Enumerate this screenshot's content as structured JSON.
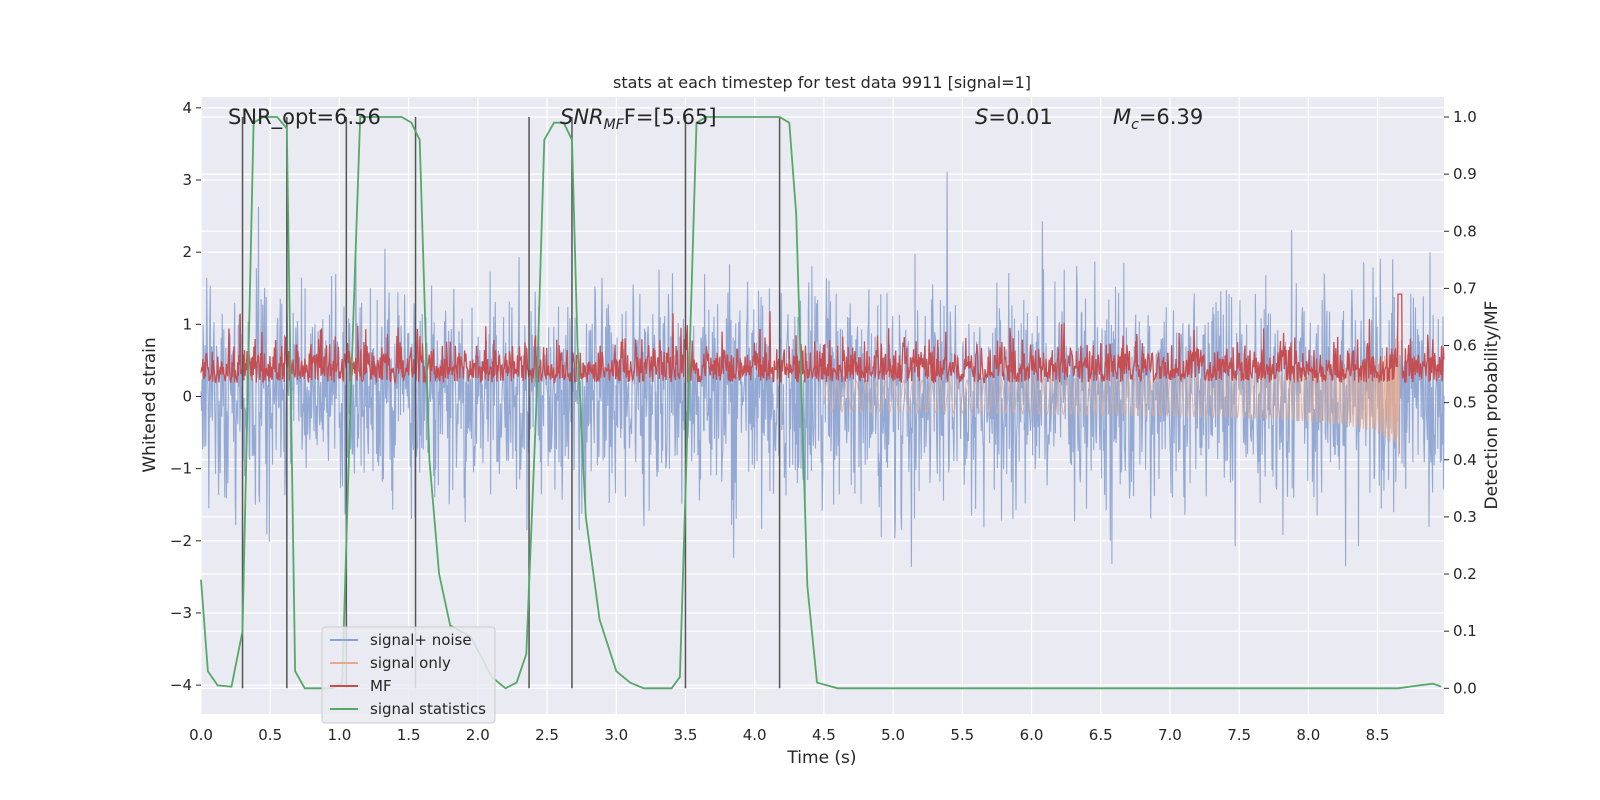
{
  "chart_data": {
    "type": "line",
    "title": "stats at each timestep for test data 9911 [signal=1]",
    "xlabel": "Time (s)",
    "ylabel": "Whitened strain",
    "y2label": "Detection probability/MF",
    "xlim": [
      0.0,
      8.98
    ],
    "ylim": [
      -4.4,
      4.15
    ],
    "y2lim": [
      -0.045,
      1.035
    ],
    "xticks": [
      "0.0",
      "0.5",
      "1.0",
      "1.5",
      "2.0",
      "2.5",
      "3.0",
      "3.5",
      "4.0",
      "4.5",
      "5.0",
      "5.5",
      "6.0",
      "6.5",
      "7.0",
      "7.5",
      "8.0",
      "8.5"
    ],
    "xtick_values": [
      0.0,
      0.5,
      1.0,
      1.5,
      2.0,
      2.5,
      3.0,
      3.5,
      4.0,
      4.5,
      5.0,
      5.5,
      6.0,
      6.5,
      7.0,
      7.5,
      8.0,
      8.5
    ],
    "yticks": [
      "−4",
      "−3",
      "−2",
      "−1",
      "0",
      "1",
      "2",
      "3",
      "4"
    ],
    "ytick_values": [
      -4,
      -3,
      -2,
      -1,
      0,
      1,
      2,
      3,
      4
    ],
    "y2ticks": [
      "0.0",
      "0.1",
      "0.2",
      "0.3",
      "0.4",
      "0.5",
      "0.6",
      "0.7",
      "0.8",
      "0.9",
      "1.0"
    ],
    "y2tick_values": [
      0.0,
      0.1,
      0.2,
      0.3,
      0.4,
      0.5,
      0.6,
      0.7,
      0.8,
      0.9,
      1.0
    ],
    "annotations": {
      "snr_opt": "SNR_opt=6.56",
      "snr_mf_base": "SNR",
      "snr_mf_sub": "MF",
      "snr_mf_value": "F=[5.65]",
      "s_base": "S",
      "s_value": "=0.01",
      "mc_base": "M",
      "mc_sub": "c",
      "mc_value": "=6.39"
    },
    "legend": {
      "placement": "lower-left",
      "entries": [
        {
          "label": "signal+ noise",
          "color": "#8aa2d0"
        },
        {
          "label": "signal only",
          "color": "#e8a98a"
        },
        {
          "label": "MF",
          "color": "#c44e52"
        },
        {
          "label": "signal statistics",
          "color": "#55a868"
        }
      ]
    },
    "series": [
      {
        "name": "signal+ noise",
        "color": "#8aa2d0",
        "description": "whitened strain, dense noise envelope",
        "envelope_sigma": 0.75,
        "t_range": [
          0.0,
          8.98
        ],
        "n_samples": 2400
      },
      {
        "name": "signal only",
        "color": "#e8a98a",
        "t_range": [
          4.5,
          8.66
        ],
        "peak_time": 8.66,
        "peak_amplitude": 0.9
      },
      {
        "name": "MF",
        "color": "#c44e52",
        "axis": "right",
        "baseline": 0.54,
        "spread": 0.035,
        "peak_time": 8.66,
        "peak_value": 0.69
      },
      {
        "name": "signal statistics",
        "color": "#55a868",
        "axis": "right",
        "t": [
          0.0,
          0.05,
          0.12,
          0.22,
          0.3,
          0.38,
          0.45,
          0.55,
          0.62,
          0.68,
          0.75,
          0.85,
          0.95,
          1.02,
          1.08,
          1.15,
          1.3,
          1.45,
          1.52,
          1.58,
          1.65,
          1.72,
          1.8,
          1.95,
          2.1,
          2.2,
          2.28,
          2.35,
          2.42,
          2.48,
          2.55,
          2.62,
          2.68,
          2.72,
          2.78,
          2.88,
          3.0,
          3.1,
          3.2,
          3.3,
          3.4,
          3.46,
          3.52,
          3.58,
          3.65,
          3.72,
          3.85,
          4.05,
          4.18,
          4.25,
          4.3,
          4.38,
          4.45,
          4.6,
          5.5,
          6.5,
          7.5,
          8.3,
          8.65,
          8.8,
          8.9,
          8.96
        ],
        "p": [
          0.19,
          0.03,
          0.005,
          0.003,
          0.1,
          0.99,
          1.0,
          1.0,
          0.98,
          0.03,
          0.0,
          0.0,
          0.0,
          0.01,
          0.5,
          1.0,
          1.0,
          1.0,
          0.99,
          0.96,
          0.4,
          0.2,
          0.11,
          0.09,
          0.02,
          0.0,
          0.01,
          0.06,
          0.48,
          0.96,
          0.99,
          0.99,
          0.96,
          0.6,
          0.3,
          0.12,
          0.03,
          0.01,
          0.0,
          0.0,
          0.0,
          0.02,
          0.5,
          0.99,
          1.0,
          1.0,
          1.0,
          1.0,
          1.0,
          0.99,
          0.83,
          0.18,
          0.01,
          0.0,
          0.0,
          0.0,
          0.0,
          0.0,
          0.0,
          0.005,
          0.008,
          0.003
        ]
      }
    ],
    "vertical_markers": [
      0.3,
      0.62,
      1.05,
      1.55,
      2.37,
      2.68,
      3.5,
      4.18
    ]
  }
}
